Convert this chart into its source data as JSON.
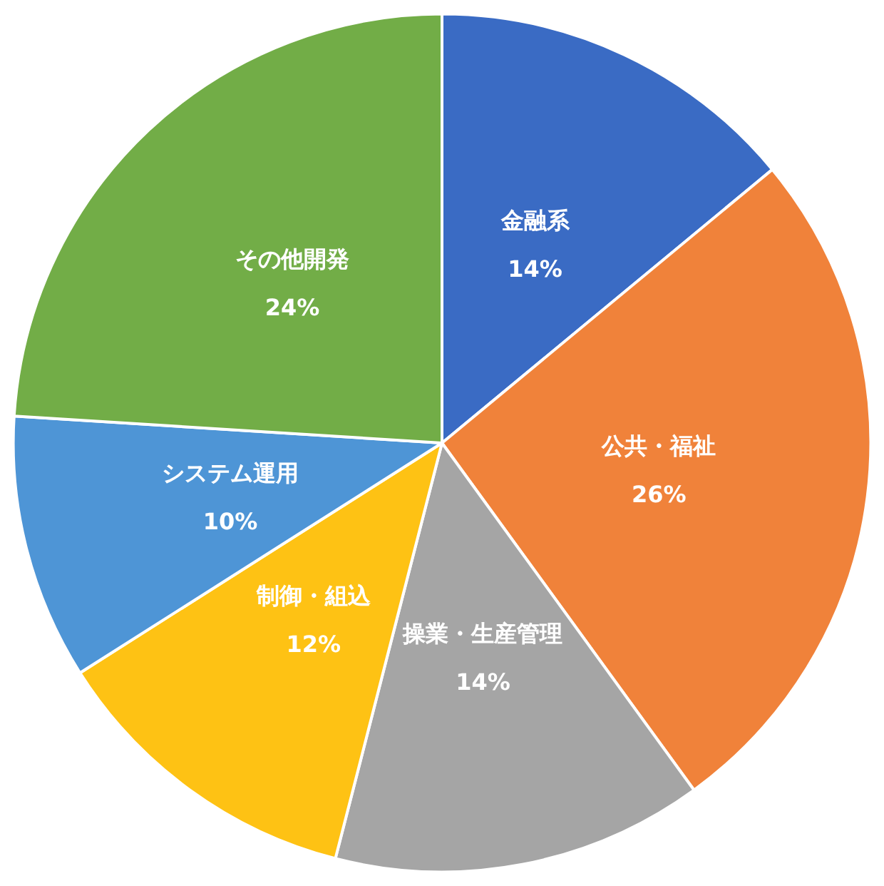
{
  "chart_data": {
    "type": "pie",
    "categories": [
      "金融系",
      "公共・福祉",
      "操業・生産管理",
      "制御・組込",
      "システム運用",
      "その他開発"
    ],
    "values": [
      14,
      26,
      14,
      12,
      10,
      24
    ],
    "value_labels": [
      "14%",
      "26%",
      "14%",
      "12%",
      "10%",
      "24%"
    ],
    "colors": [
      "#3a6bc4",
      "#f0823a",
      "#a5a5a5",
      "#fec214",
      "#4e95d6",
      "#72ad47"
    ],
    "legend": false
  }
}
